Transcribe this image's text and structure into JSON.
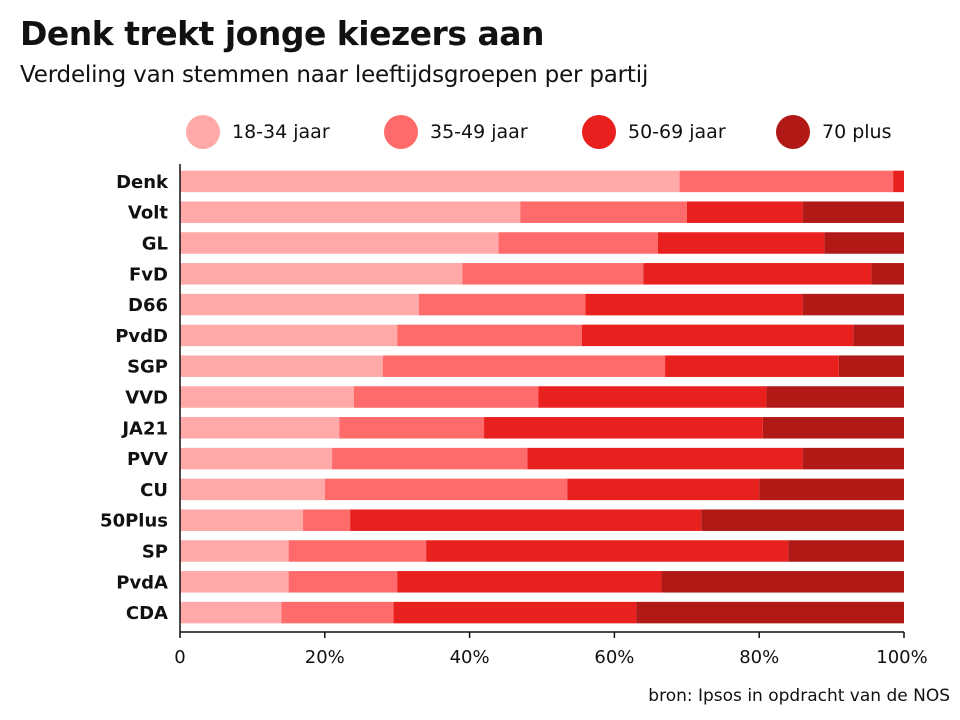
{
  "chart_data": {
    "type": "bar",
    "orientation": "horizontal",
    "stacked": true,
    "title": "Denk trekt jonge kiezers aan",
    "subtitle": "Verdeling van stemmen naar leeftijdsgroepen per partij",
    "categories": [
      "Denk",
      "Volt",
      "GL",
      "FvD",
      "D66",
      "PvdD",
      "SGP",
      "VVD",
      "JA21",
      "PVV",
      "CU",
      "50Plus",
      "SP",
      "PvdA",
      "CDA"
    ],
    "series": [
      {
        "name": "18-34 jaar",
        "color": "#FFA9A9",
        "values": [
          69,
          47,
          44,
          39,
          33,
          30,
          28,
          24,
          22,
          21,
          20,
          17,
          15,
          15,
          14
        ]
      },
      {
        "name": "35-49 jaar",
        "color": "#FF6B6B",
        "values": [
          29.5,
          23,
          22,
          25,
          23,
          25.5,
          39,
          25.5,
          20,
          27,
          33.5,
          6.5,
          19,
          15,
          15.5
        ]
      },
      {
        "name": "50-69 jaar",
        "color": "#E8211E",
        "values": [
          1.5,
          16,
          23,
          31.5,
          30,
          37.5,
          24,
          31.5,
          38.5,
          38,
          26.5,
          48.5,
          50,
          36.5,
          33.5
        ]
      },
      {
        "name": "70 plus",
        "color": "#B01916",
        "values": [
          0,
          14,
          11,
          4.5,
          14,
          7,
          9,
          19,
          19.5,
          14,
          20,
          28,
          16,
          33.5,
          37
        ]
      }
    ],
    "xlim": [
      0,
      100
    ],
    "xticks": [
      0,
      20,
      40,
      60,
      80,
      100
    ],
    "tick_labels": [
      "0",
      "20%",
      "40%",
      "60%",
      "80%",
      "100%"
    ],
    "legend": "top",
    "grid": false,
    "source": "bron: Ipsos in opdracht van de NOS"
  }
}
